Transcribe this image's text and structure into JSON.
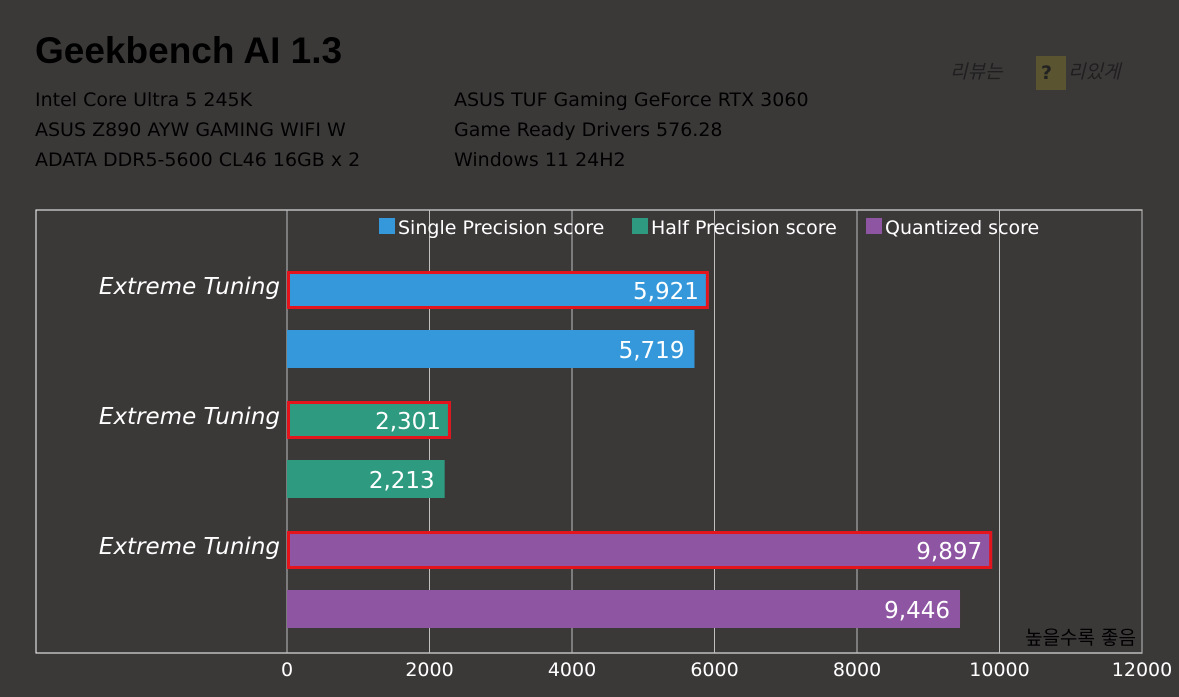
{
  "header": {
    "title": "Geekbench AI 1.3",
    "watermark": {
      "prefix": "리뷰는",
      "badge": "?",
      "suffix": "리있게"
    },
    "specs_left": [
      "Intel Core Ultra 5 245K",
      "ASUS Z890 AYW GAMING WIFI W",
      "ADATA DDR5-5600 CL46 16GB x 2"
    ],
    "specs_right": [
      "ASUS TUF Gaming GeForce RTX 3060",
      "Game Ready Drivers 576.28",
      "Windows 11 24H2"
    ]
  },
  "colors": {
    "background": "#3b3838",
    "single": "#3498db",
    "half": "#2e9a80",
    "quantized": "#8e55a2",
    "highlight": "#e3141b",
    "grid": "#bfbfbf",
    "badge": "#5a5530"
  },
  "chart_data": {
    "type": "bar",
    "orientation": "horizontal",
    "title": "Geekbench AI 1.3",
    "xlim": [
      0,
      12000
    ],
    "ticks": [
      "0",
      "2000",
      "4000",
      "6000",
      "8000",
      "10000",
      "12000"
    ],
    "tick_values": [
      0,
      2000,
      4000,
      6000,
      8000,
      10000,
      12000
    ],
    "grid": true,
    "legend_position": "top",
    "note": "높을수록 좋음",
    "series": [
      {
        "name": "Single Precision score",
        "color_key": "single",
        "values": [
          5921,
          5719
        ],
        "labels": [
          "5,921",
          "5,719"
        ]
      },
      {
        "name": "Half Precision score",
        "color_key": "half",
        "values": [
          2301,
          2213
        ],
        "labels": [
          "2,301",
          "2,213"
        ]
      },
      {
        "name": "Quantized score",
        "color_key": "quantized",
        "values": [
          9897,
          9446
        ],
        "labels": [
          "9,897",
          "9,446"
        ]
      }
    ],
    "bar_categories": [
      "Extreme Tuning",
      ""
    ],
    "highlighted_bar_index": 0
  }
}
